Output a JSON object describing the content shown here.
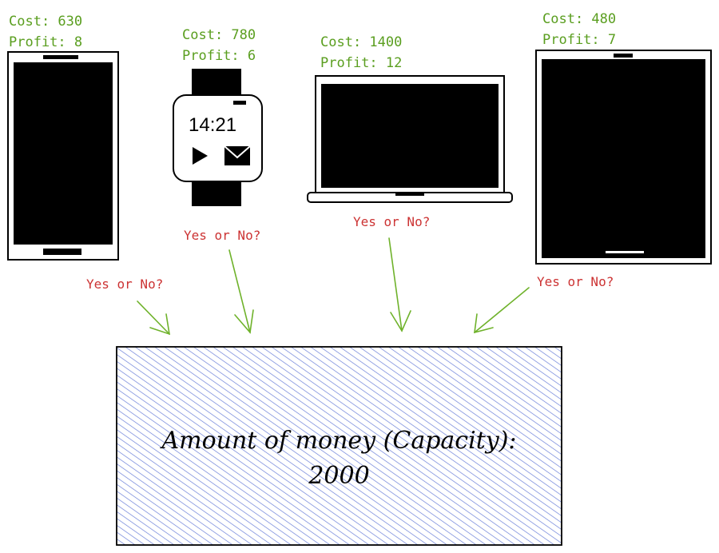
{
  "items": [
    {
      "name": "phone",
      "cost": "Cost: 630",
      "profit": "Profit: 8"
    },
    {
      "name": "watch",
      "cost": "Cost: 780",
      "profit": "Profit: 6"
    },
    {
      "name": "laptop",
      "cost": "Cost: 1400",
      "profit": "Profit: 12"
    },
    {
      "name": "tablet",
      "cost": "Cost: 480",
      "profit": "Profit: 7"
    }
  ],
  "question": "Yes or No?",
  "watch_time": "14:21",
  "capacity": {
    "line1": "Amount of money (Capacity):",
    "line2": "2000"
  },
  "colors": {
    "label": "#5a9e1f",
    "question": "#cc3333",
    "arrow": "#6fb22b",
    "box_fill": "#6a7fd8",
    "box_stroke": "#000000"
  }
}
